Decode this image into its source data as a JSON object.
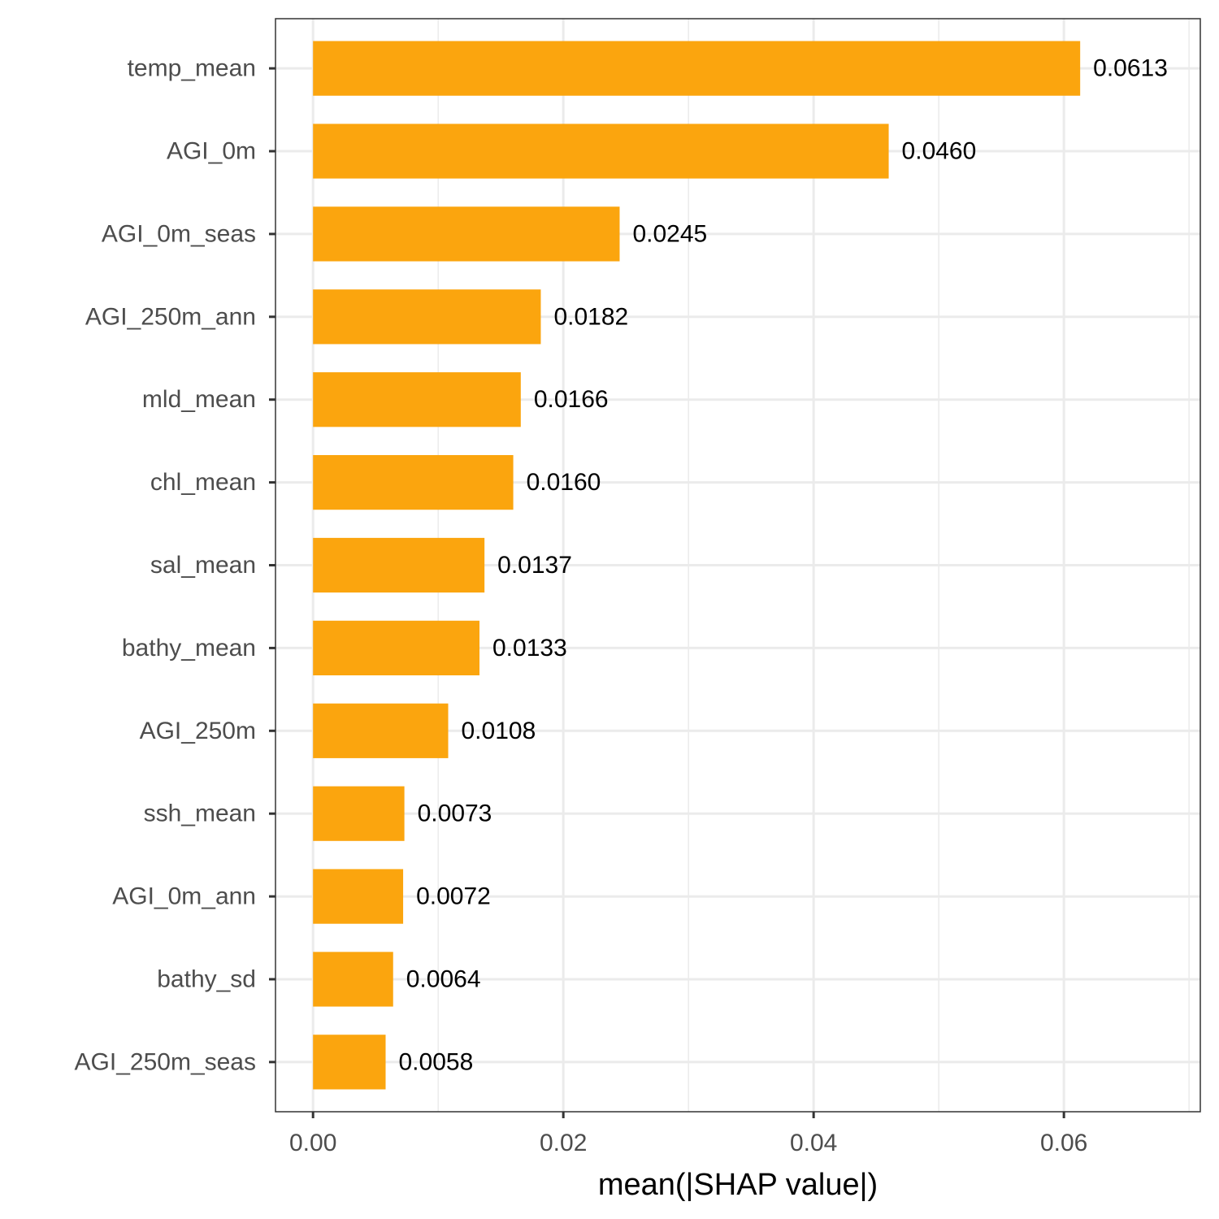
{
  "chart_data": {
    "type": "bar",
    "orientation": "horizontal",
    "categories": [
      "temp_mean",
      "AGI_0m",
      "AGI_0m_seas",
      "AGI_250m_ann",
      "mld_mean",
      "chl_mean",
      "sal_mean",
      "bathy_mean",
      "AGI_250m",
      "ssh_mean",
      "AGI_0m_ann",
      "bathy_sd",
      "AGI_250m_seas"
    ],
    "values": [
      0.0613,
      0.046,
      0.0245,
      0.0182,
      0.0166,
      0.016,
      0.0137,
      0.0133,
      0.0108,
      0.0073,
      0.0072,
      0.0064,
      0.0058
    ],
    "value_labels": [
      "0.0613",
      "0.0460",
      "0.0245",
      "0.0182",
      "0.0166",
      "0.0160",
      "0.0137",
      "0.0133",
      "0.0108",
      "0.0073",
      "0.0072",
      "0.0064",
      "0.0058"
    ],
    "title": "",
    "xlabel": "mean(|SHAP value|)",
    "ylabel": "",
    "xlim": [
      -0.003,
      0.0709
    ],
    "x_ticks": [
      0.0,
      0.02,
      0.04,
      0.06
    ],
    "x_tick_labels": [
      "0.00",
      "0.02",
      "0.04",
      "0.06"
    ],
    "grid": true,
    "legend": "none",
    "colors": {
      "bar": "#FBA50E",
      "grid": "#EBEBEB",
      "panel_border": "#333333",
      "tick_text": "#4D4D4D",
      "label_text": "#000000"
    }
  }
}
